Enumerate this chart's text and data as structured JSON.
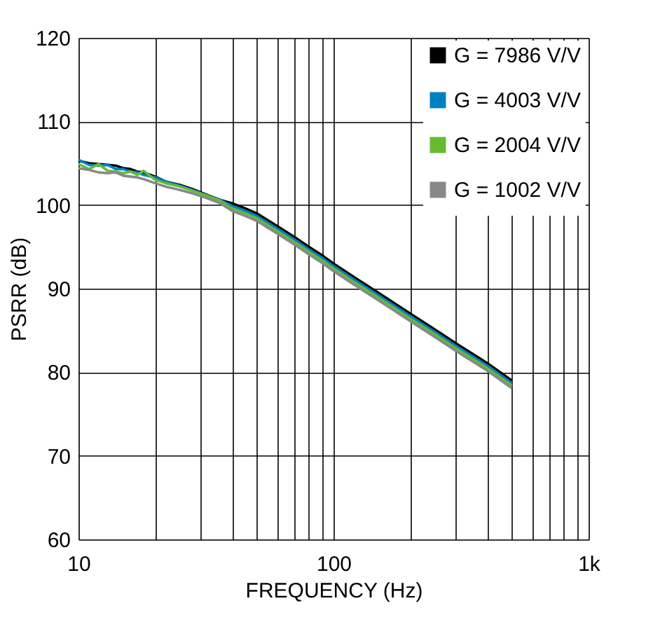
{
  "chart_data": {
    "type": "line",
    "xlabel": "FREQUENCY (Hz)",
    "ylabel": "PSRR (dB)",
    "x": [
      10,
      11,
      12,
      13,
      14,
      15,
      16,
      17,
      18,
      20,
      22,
      25,
      28,
      32,
      36,
      40,
      45,
      50,
      60,
      70,
      80,
      90,
      100,
      120,
      150,
      200,
      250,
      300,
      400,
      500
    ],
    "series": [
      {
        "name": "G = 7986 V/V",
        "color": "#000000",
        "values": [
          105.3,
          105.0,
          104.9,
          104.8,
          104.7,
          104.4,
          104.3,
          104.0,
          103.9,
          103.4,
          102.8,
          102.4,
          101.9,
          101.2,
          100.6,
          100.2,
          99.6,
          99.0,
          97.5,
          96.2,
          95.0,
          94.0,
          93.0,
          91.4,
          89.5,
          87.0,
          85.1,
          83.5,
          81.1,
          79.0
        ]
      },
      {
        "name": "G = 4003 V/V",
        "color": "#0080c0",
        "values": [
          105.4,
          104.8,
          104.7,
          104.8,
          104.3,
          104.3,
          104.0,
          103.9,
          103.6,
          103.3,
          102.8,
          102.3,
          101.8,
          101.1,
          100.6,
          99.9,
          99.3,
          98.7,
          97.2,
          95.9,
          94.7,
          93.7,
          92.7,
          91.1,
          89.2,
          86.7,
          84.8,
          83.2,
          80.8,
          78.7
        ]
      },
      {
        "name": "G = 2004 V/V",
        "color": "#66bb33",
        "values": [
          104.9,
          104.3,
          104.9,
          104.1,
          104.0,
          103.8,
          104.0,
          103.6,
          104.1,
          103.0,
          102.6,
          102.2,
          101.7,
          101.1,
          100.5,
          99.6,
          99.0,
          98.4,
          96.9,
          95.6,
          94.4,
          93.4,
          92.4,
          90.8,
          88.9,
          86.4,
          84.5,
          82.9,
          80.5,
          78.4
        ]
      },
      {
        "name": "G = 1002 V/V",
        "color": "#888888",
        "values": [
          104.4,
          104.2,
          103.9,
          103.8,
          103.9,
          103.5,
          103.4,
          103.3,
          103.1,
          102.6,
          102.2,
          101.8,
          101.4,
          100.8,
          100.2,
          99.3,
          98.7,
          98.1,
          96.6,
          95.3,
          94.1,
          93.1,
          92.1,
          90.5,
          88.6,
          86.1,
          84.2,
          82.6,
          80.2,
          78.1
        ]
      }
    ],
    "xlim": [
      10,
      1000
    ],
    "xticks": [
      10,
      {
        "value": 20,
        "label": null
      },
      {
        "value": 30,
        "label": null
      },
      {
        "value": 40,
        "label": null
      },
      {
        "value": 50,
        "label": null
      },
      {
        "value": 60,
        "label": null
      },
      {
        "value": 70,
        "label": null
      },
      {
        "value": 80,
        "label": null
      },
      {
        "value": 90,
        "label": null
      },
      100,
      {
        "value": 200,
        "label": null
      },
      {
        "value": 300,
        "label": null
      },
      {
        "value": 400,
        "label": null
      },
      {
        "value": 500,
        "label": null
      },
      {
        "value": 600,
        "label": null
      },
      {
        "value": 700,
        "label": null
      },
      {
        "value": 800,
        "label": null
      },
      {
        "value": 900,
        "label": null
      },
      {
        "value": 1000,
        "label": "1k"
      }
    ],
    "ylim": [
      60,
      120
    ],
    "yticks": [
      60,
      70,
      80,
      90,
      100,
      110,
      120
    ],
    "log": "x",
    "grid": true,
    "legend": "top right",
    "marker": "none",
    "line_style": "solid"
  }
}
